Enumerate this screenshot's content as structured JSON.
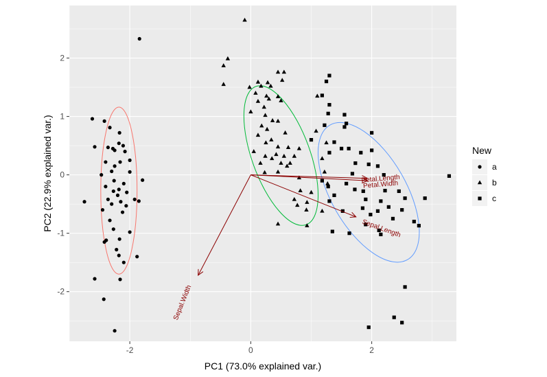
{
  "chart_data": {
    "type": "scatter",
    "title": "",
    "xlabel": "PC1 (73.0% explained var.)",
    "ylabel": "PC2 (22.9% explained var.)",
    "xlim": [
      -3.0,
      3.4
    ],
    "ylim": [
      -2.85,
      2.9
    ],
    "x_ticks": [
      -2,
      0,
      2
    ],
    "y_ticks": [
      -2,
      -1,
      0,
      1,
      2
    ],
    "x_tick_labels": [
      "-2",
      "0",
      "2"
    ],
    "y_tick_labels": [
      "-2",
      "-1",
      "0",
      "1",
      "2"
    ],
    "grid": true,
    "background": "#ebebeb",
    "legend": {
      "title": "New",
      "position": "right",
      "entries": [
        {
          "label": "a",
          "shape": "circle"
        },
        {
          "label": "b",
          "shape": "triangle"
        },
        {
          "label": "c",
          "shape": "square"
        }
      ]
    },
    "series": [
      {
        "name": "a",
        "shape": "circle",
        "points": [
          [
            -1.84,
            2.33
          ],
          [
            -2.62,
            0.96
          ],
          [
            -2.42,
            0.92
          ],
          [
            -2.33,
            0.81
          ],
          [
            -2.58,
            0.48
          ],
          [
            -2.36,
            0.47
          ],
          [
            -2.17,
            0.72
          ],
          [
            -2.18,
            0.54
          ],
          [
            -2.08,
            0.4
          ],
          [
            -2.28,
            0.45
          ],
          [
            -2.11,
            0.5
          ],
          [
            -2.25,
            0.42
          ],
          [
            -2.0,
            0.25
          ],
          [
            -2.4,
            0.22
          ],
          [
            -2.25,
            0.15
          ],
          [
            -2.16,
            0.22
          ],
          [
            -2.3,
            0.06
          ],
          [
            -2.47,
            0.0
          ],
          [
            -2.0,
            0.05
          ],
          [
            -1.79,
            -0.09
          ],
          [
            -2.26,
            -0.1
          ],
          [
            -2.1,
            -0.15
          ],
          [
            -2.4,
            -0.2
          ],
          [
            -2.18,
            -0.25
          ],
          [
            -2.27,
            -0.28
          ],
          [
            -2.05,
            -0.3
          ],
          [
            -2.2,
            -0.35
          ],
          [
            -2.36,
            -0.42
          ],
          [
            -1.92,
            -0.42
          ],
          [
            -1.85,
            -0.45
          ],
          [
            -2.75,
            -0.46
          ],
          [
            -2.15,
            -0.46
          ],
          [
            -2.3,
            -0.5
          ],
          [
            -2.06,
            -0.53
          ],
          [
            -2.45,
            -0.6
          ],
          [
            -2.12,
            -0.64
          ],
          [
            -2.33,
            -0.78
          ],
          [
            -2.27,
            -0.93
          ],
          [
            -2.0,
            -0.98
          ],
          [
            -2.17,
            -1.1
          ],
          [
            -2.39,
            -1.12
          ],
          [
            -2.22,
            -1.28
          ],
          [
            -2.42,
            -1.15
          ],
          [
            -2.18,
            -1.38
          ],
          [
            -1.88,
            -1.4
          ],
          [
            -2.1,
            -1.5
          ],
          [
            -2.58,
            -1.78
          ],
          [
            -2.16,
            -1.79
          ],
          [
            -2.43,
            -2.13
          ],
          [
            -2.25,
            -2.67
          ]
        ]
      },
      {
        "name": "b",
        "shape": "triangle",
        "points": [
          [
            -0.1,
            2.65
          ],
          [
            -0.38,
            1.99
          ],
          [
            -0.45,
            1.87
          ],
          [
            -0.45,
            1.55
          ],
          [
            0.45,
            1.76
          ],
          [
            0.55,
            1.76
          ],
          [
            0.52,
            1.62
          ],
          [
            0.12,
            1.59
          ],
          [
            0.28,
            1.58
          ],
          [
            -0.02,
            1.5
          ],
          [
            0.17,
            1.52
          ],
          [
            0.33,
            1.52
          ],
          [
            0.08,
            1.4
          ],
          [
            0.26,
            1.35
          ],
          [
            0.45,
            1.34
          ],
          [
            1.1,
            1.35
          ],
          [
            0.12,
            1.26
          ],
          [
            0.3,
            1.3
          ],
          [
            0.5,
            1.27
          ],
          [
            0.22,
            1.16
          ],
          [
            0.0,
            1.08
          ],
          [
            0.24,
            1.02
          ],
          [
            0.36,
            0.93
          ],
          [
            0.45,
            0.92
          ],
          [
            0.18,
            0.84
          ],
          [
            0.27,
            0.78
          ],
          [
            0.57,
            0.72
          ],
          [
            0.12,
            0.68
          ],
          [
            0.34,
            0.6
          ],
          [
            0.25,
            0.55
          ],
          [
            0.45,
            0.48
          ],
          [
            1.08,
            0.75
          ],
          [
            0.62,
            0.47
          ],
          [
            1.25,
            0.55
          ],
          [
            0.42,
            0.35
          ],
          [
            0.55,
            0.32
          ],
          [
            0.8,
            0.45
          ],
          [
            0.72,
            0.32
          ],
          [
            0.05,
            0.4
          ],
          [
            0.24,
            0.32
          ],
          [
            0.35,
            0.28
          ],
          [
            0.5,
            0.2
          ],
          [
            0.65,
            0.2
          ],
          [
            1.18,
            0.28
          ],
          [
            0.16,
            0.2
          ],
          [
            0.6,
            0.15
          ],
          [
            0.23,
            0.04
          ],
          [
            0.45,
            0.05
          ],
          [
            1.22,
            0.05
          ],
          [
            0.8,
            -0.05
          ],
          [
            1.27,
            -0.15
          ],
          [
            0.82,
            -0.27
          ],
          [
            1.0,
            -0.3
          ],
          [
            0.72,
            -0.42
          ],
          [
            0.93,
            -0.47
          ],
          [
            0.77,
            -0.52
          ],
          [
            0.92,
            -0.6
          ],
          [
            1.18,
            -0.62
          ],
          [
            0.45,
            -0.84
          ],
          [
            0.93,
            -0.87
          ]
        ]
      },
      {
        "name": "c",
        "shape": "square",
        "points": [
          [
            1.3,
            1.7
          ],
          [
            1.25,
            1.6
          ],
          [
            1.18,
            1.36
          ],
          [
            1.3,
            1.2
          ],
          [
            1.28,
            1.05
          ],
          [
            1.55,
            1.03
          ],
          [
            1.58,
            0.88
          ],
          [
            1.22,
            0.85
          ],
          [
            1.55,
            0.82
          ],
          [
            2.0,
            0.72
          ],
          [
            1.0,
            0.6
          ],
          [
            1.38,
            0.56
          ],
          [
            1.5,
            0.45
          ],
          [
            1.62,
            0.45
          ],
          [
            2.0,
            0.42
          ],
          [
            1.3,
            0.38
          ],
          [
            1.82,
            0.38
          ],
          [
            1.95,
            0.18
          ],
          [
            1.73,
            0.2
          ],
          [
            2.1,
            0.15
          ],
          [
            1.68,
            0.02
          ],
          [
            2.2,
            0.0
          ],
          [
            3.28,
            -0.02
          ],
          [
            1.18,
            -0.1
          ],
          [
            1.58,
            -0.15
          ],
          [
            1.72,
            -0.25
          ],
          [
            2.22,
            -0.27
          ],
          [
            1.28,
            -0.2
          ],
          [
            1.86,
            -0.28
          ],
          [
            2.45,
            -0.28
          ],
          [
            1.38,
            -0.35
          ],
          [
            2.55,
            -0.4
          ],
          [
            2.88,
            -0.4
          ],
          [
            1.3,
            -0.45
          ],
          [
            1.9,
            -0.42
          ],
          [
            2.15,
            -0.45
          ],
          [
            2.28,
            -0.55
          ],
          [
            1.52,
            -0.62
          ],
          [
            1.85,
            -0.57
          ],
          [
            2.1,
            -0.62
          ],
          [
            2.5,
            -0.6
          ],
          [
            1.98,
            -0.68
          ],
          [
            2.35,
            -0.75
          ],
          [
            2.7,
            -0.8
          ],
          [
            1.9,
            -0.85
          ],
          [
            2.12,
            -0.95
          ],
          [
            1.35,
            -0.97
          ],
          [
            2.78,
            -0.87
          ],
          [
            2.15,
            -1.02
          ],
          [
            1.63,
            -1.0
          ]
        ]
      }
    ],
    "extra_c_points": [
      [
        2.55,
        -1.92
      ],
      [
        2.37,
        -2.44
      ],
      [
        2.5,
        -2.53
      ],
      [
        1.95,
        -2.61
      ]
    ],
    "ellipses": [
      {
        "group": "a",
        "color": "#f8766d",
        "cx": -2.18,
        "cy": -0.27,
        "rx": 0.3,
        "ry": 1.43,
        "angle": 0
      },
      {
        "group": "b",
        "color": "#00ba38",
        "cx": 0.5,
        "cy": 0.33,
        "rx": 0.48,
        "ry": 1.26,
        "angle": -20
      },
      {
        "group": "c",
        "color": "#619cff",
        "cx": 1.95,
        "cy": -0.3,
        "rx": 0.62,
        "ry": 1.33,
        "angle": -30
      }
    ],
    "arrows": [
      {
        "label": "Petal.Length",
        "x": 1.93,
        "y": -0.06,
        "label_x": 2.15,
        "label_y": -0.1,
        "label_angle": -5
      },
      {
        "label": "Petal.Width",
        "x": 1.93,
        "y": -0.1,
        "label_x": 2.15,
        "label_y": -0.2,
        "label_angle": -5
      },
      {
        "label": "Sepal.Length",
        "x": 1.74,
        "y": -0.72,
        "label_x": 2.15,
        "label_y": -0.95,
        "label_angle": 20
      },
      {
        "label": "Sepal.Width",
        "x": -0.87,
        "y": -1.72,
        "label_x": -1.1,
        "label_y": -2.2,
        "label_angle": -68
      }
    ],
    "arrow_color": "#8b0000"
  }
}
